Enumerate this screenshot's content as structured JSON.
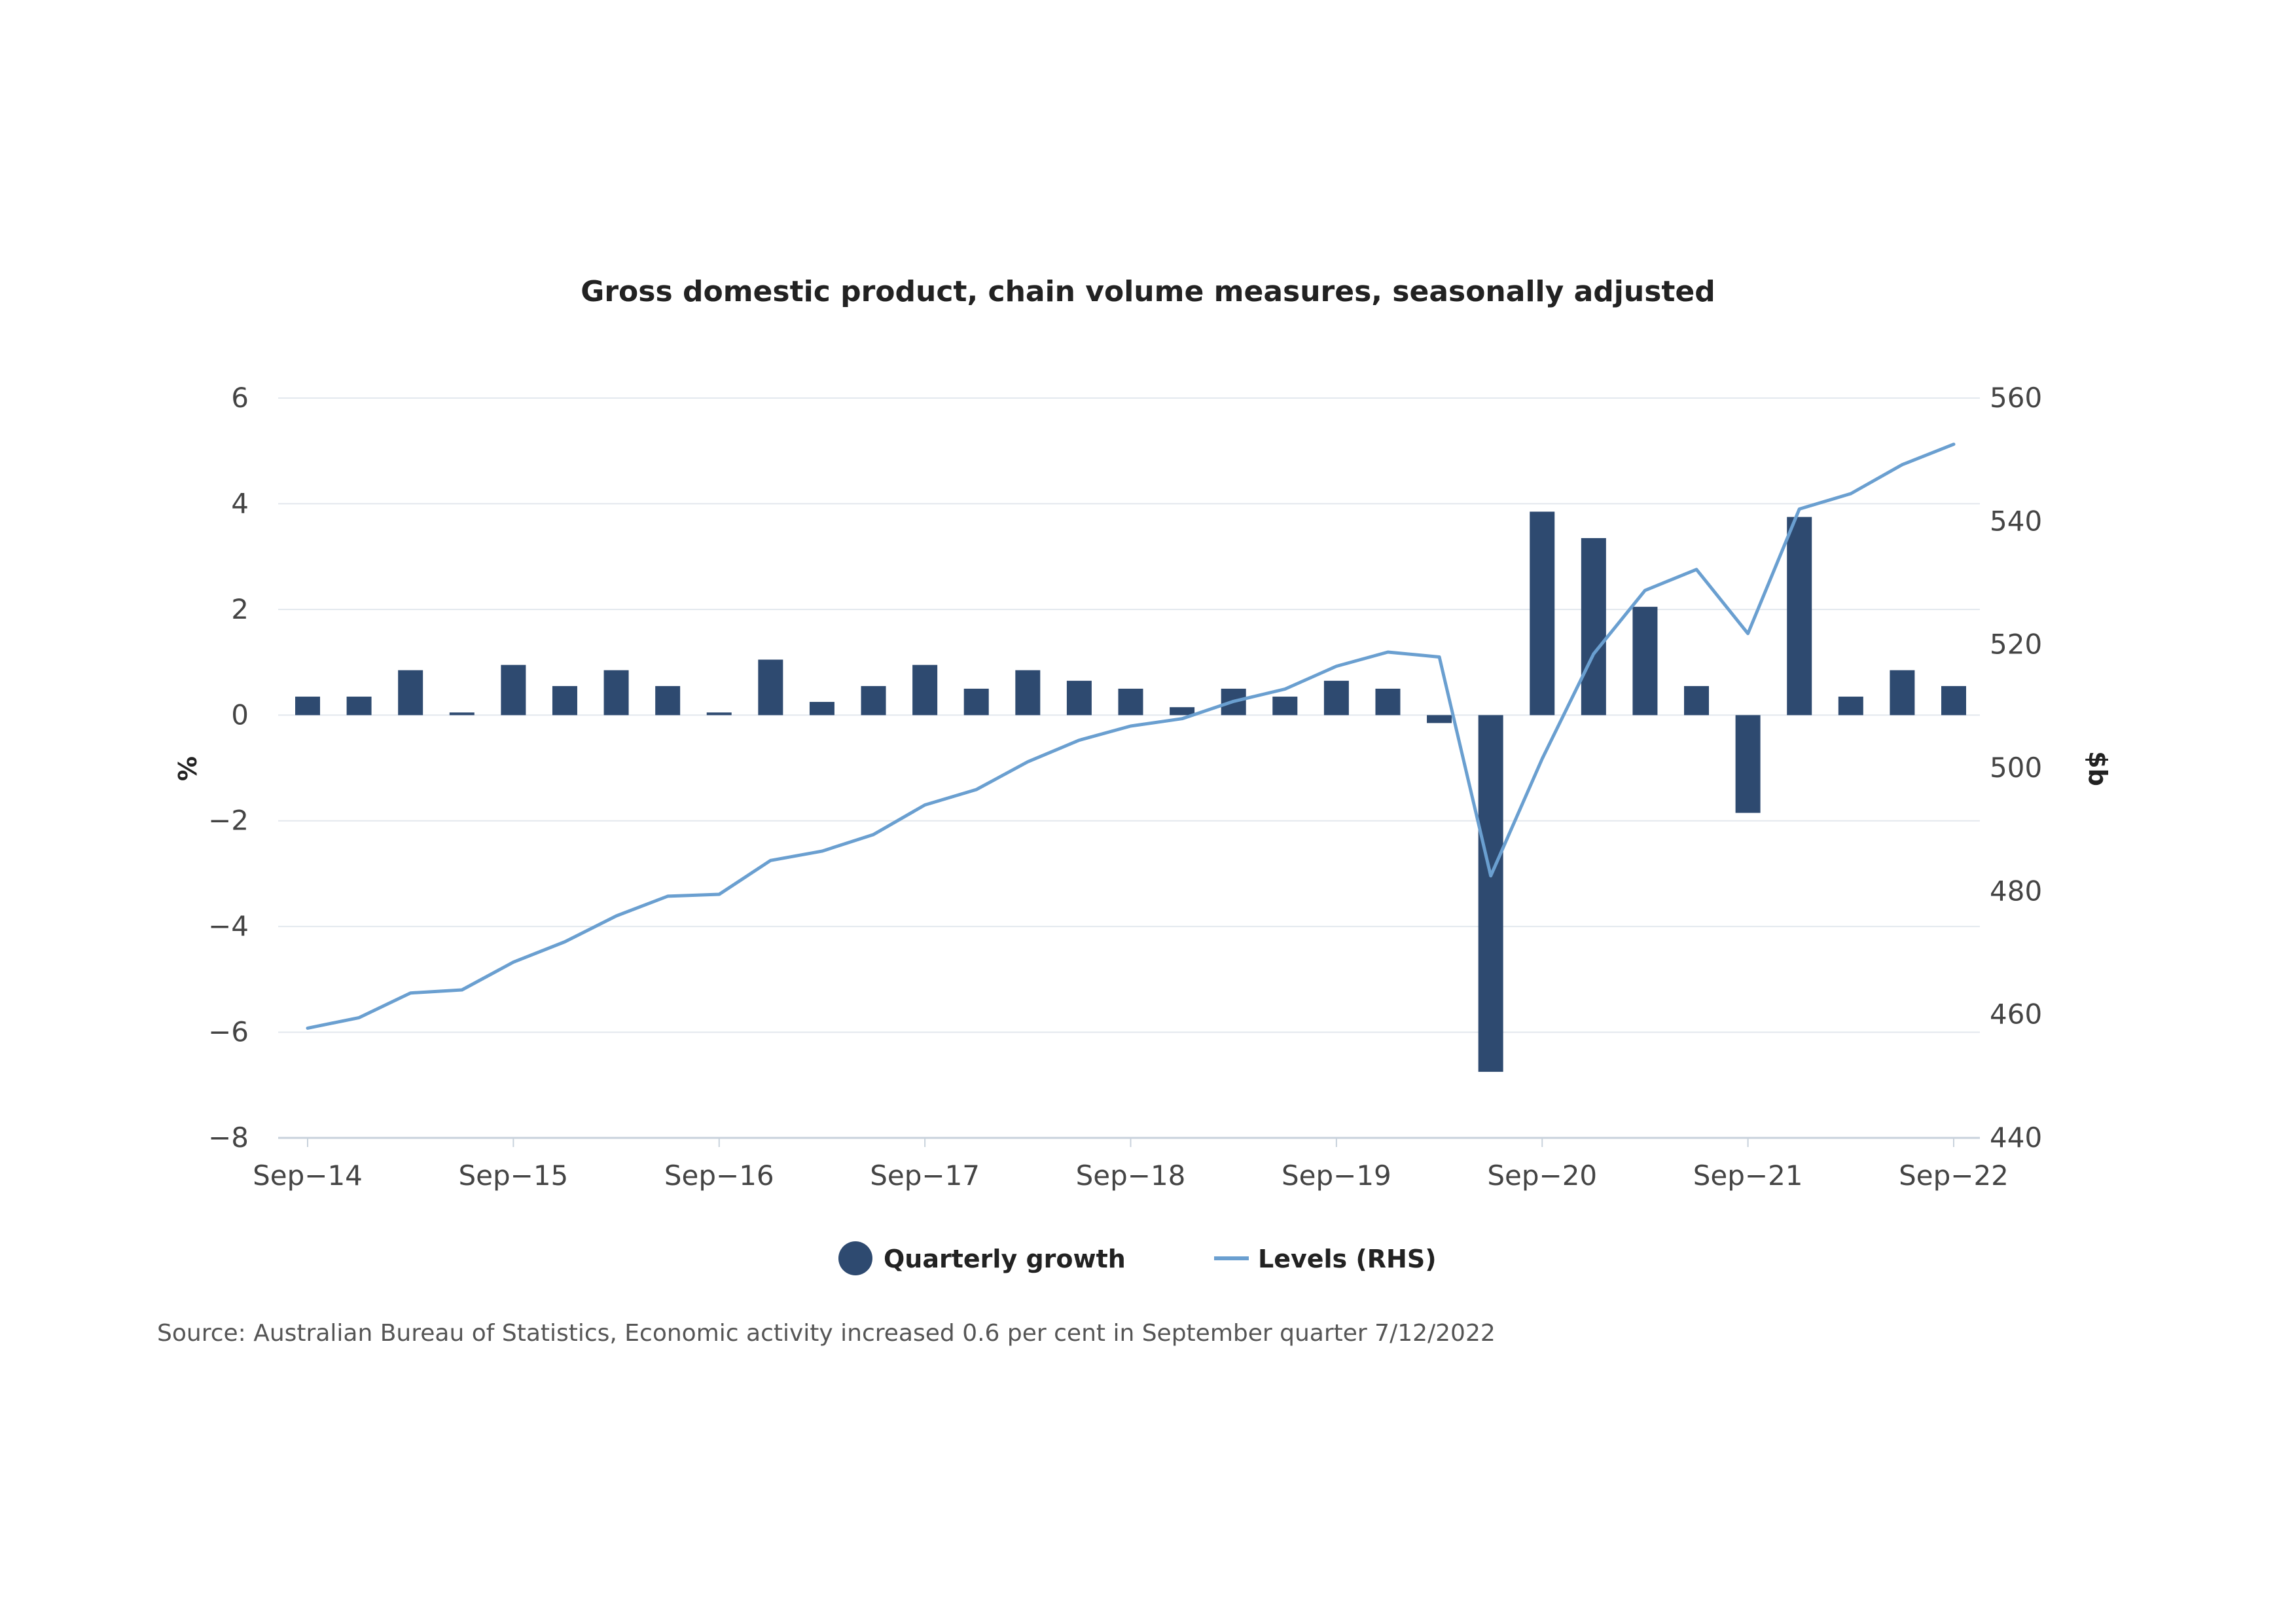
{
  "chart_data": {
    "type": "bar",
    "title": "Gross domestic product, chain volume measures, seasonally adjusted",
    "y_label_left": "%",
    "y_label_right": "$b",
    "ylim_left": [
      -8,
      6
    ],
    "yticks_left": [
      "6",
      "4",
      "2",
      "0",
      "−2",
      "−4",
      "−6",
      "−8"
    ],
    "ylim_right": [
      440,
      560
    ],
    "yticks_right": [
      "560",
      "540",
      "520",
      "500",
      "480",
      "460",
      "440"
    ],
    "x_tick_labels": [
      "Sep-14",
      "Sep-15",
      "Sep-16",
      "Sep-17",
      "Sep-18",
      "Sep-19",
      "Sep-20",
      "Sep-21",
      "Sep-22"
    ],
    "x_tick_text": [
      "Sep−14",
      "Sep−15",
      "Sep−16",
      "Sep−17",
      "Sep−18",
      "Sep−19",
      "Sep−20",
      "Sep−21",
      "Sep−22"
    ],
    "categories": [
      "Sep-14",
      "Dec-14",
      "Mar-15",
      "Jun-15",
      "Sep-15",
      "Dec-15",
      "Mar-16",
      "Jun-16",
      "Sep-16",
      "Dec-16",
      "Mar-17",
      "Jun-17",
      "Sep-17",
      "Dec-17",
      "Mar-18",
      "Jun-18",
      "Sep-18",
      "Dec-18",
      "Mar-19",
      "Jun-19",
      "Sep-19",
      "Dec-19",
      "Mar-20",
      "Jun-20",
      "Sep-20",
      "Dec-20",
      "Mar-21",
      "Jun-21",
      "Sep-21",
      "Dec-21",
      "Mar-22",
      "Jun-22",
      "Sep-22"
    ],
    "grid": true,
    "legend_position": "bottom-center",
    "series": [
      {
        "name": "Quarterly growth",
        "type": "bar",
        "axis": "left",
        "color": "#2e4a70",
        "values": [
          0.35,
          0.35,
          0.85,
          0.05,
          0.95,
          0.55,
          0.85,
          0.55,
          0.05,
          1.05,
          0.25,
          0.55,
          0.95,
          0.5,
          0.85,
          0.65,
          0.5,
          0.15,
          0.5,
          0.35,
          0.65,
          0.5,
          -0.15,
          -6.75,
          3.85,
          3.35,
          2.05,
          0.55,
          -1.85,
          3.75,
          0.35,
          0.85,
          0.55
        ]
      },
      {
        "name": "Levels (RHS)",
        "type": "line",
        "axis": "right",
        "color": "#6a9fd0",
        "values": [
          457.8,
          459.5,
          463.5,
          464.0,
          468.5,
          471.8,
          476.0,
          479.2,
          479.5,
          485.0,
          486.5,
          489.2,
          494.0,
          496.5,
          501.0,
          504.5,
          506.8,
          508.0,
          510.8,
          512.8,
          516.5,
          518.8,
          518.0,
          482.5,
          501.5,
          518.5,
          528.8,
          532.2,
          521.8,
          542.0,
          544.5,
          549.2,
          552.5
        ]
      }
    ]
  },
  "legend": {
    "bar_label": "Quarterly growth",
    "line_label": "Levels (RHS)"
  },
  "source": "Source: Australian Bureau of Statistics, Economic activity increased 0.6 per cent in September quarter 7/12/2022"
}
